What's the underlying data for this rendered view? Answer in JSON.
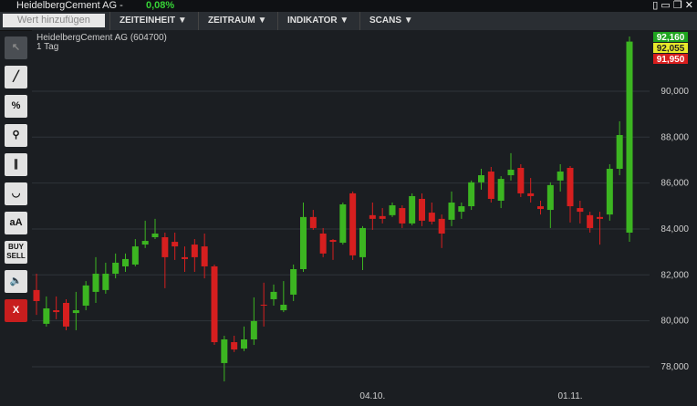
{
  "window": {
    "title": "HeidelbergCement AG -",
    "change": "0,08%"
  },
  "toolbar": {
    "search_placeholder": "Wert hinzufügen",
    "menus": [
      "ZEITEINHEIT",
      "ZEITRAUM",
      "INDIKATOR",
      "SCANS"
    ]
  },
  "tools": {
    "percent": "%",
    "text": "aA",
    "buy": "BUY",
    "sell": "SELL",
    "close": "X"
  },
  "price_tags": [
    {
      "label": "92,160",
      "color": "#1fa51f"
    },
    {
      "label": "92,055",
      "color": "#e8e82a"
    },
    {
      "label": "91,950",
      "color": "#d81e1e"
    }
  ],
  "chart_data": {
    "type": "candlestick",
    "title": "HeidelbergCement AG (604700)",
    "subtitle": "1 Tag",
    "up_color": "#3cb521",
    "down_color": "#d61f1f",
    "grid": true,
    "categories": [
      null,
      null,
      null,
      null,
      null,
      null,
      null,
      null,
      null,
      null,
      null,
      null,
      null,
      null,
      null,
      null,
      null,
      null,
      null,
      null,
      null,
      null,
      null,
      null,
      null,
      null,
      null,
      null,
      null,
      null,
      null,
      null,
      null,
      null,
      "04.10.",
      null,
      null,
      null,
      null,
      null,
      null,
      null,
      null,
      null,
      null,
      null,
      null,
      null,
      null,
      null,
      null,
      null,
      null,
      null,
      "01.11.",
      null,
      null,
      null,
      null,
      null,
      null
    ],
    "open": [
      81340,
      79870,
      80460,
      80780,
      80340,
      80660,
      81260,
      81340,
      82050,
      82370,
      82450,
      83320,
      83640,
      83640,
      83440,
      82770,
      83320,
      83240,
      82370,
      78160,
      79070,
      78790,
      79190,
      80700,
      80940,
      80460,
      81140,
      82250,
      84520,
      83800,
      83520,
      83400,
      85550,
      82770,
      84600,
      84560,
      84600,
      84910,
      84240,
      85310,
      84710,
      84440,
      84400,
      84750,
      84990,
      86030,
      86500,
      85230,
      86340,
      86660,
      85550,
      84990,
      84830,
      86110,
      86660,
      84910,
      84600,
      84520,
      84630,
      86620,
      83840
    ],
    "high": [
      82050,
      81060,
      81060,
      80940,
      81260,
      81730,
      82770,
      82530,
      82930,
      82930,
      83560,
      84360,
      84440,
      83840,
      83840,
      83240,
      83560,
      83800,
      82450,
      79350,
      79350,
      79750,
      81020,
      81660,
      81580,
      81730,
      82450,
      85150,
      84830,
      84040,
      83560,
      85150,
      85630,
      84120,
      85150,
      84910,
      85150,
      85030,
      85550,
      85550,
      85150,
      84630,
      85630,
      85150,
      86110,
      86620,
      86700,
      86300,
      87300,
      86820,
      86220,
      85230,
      86030,
      86820,
      86740,
      85230,
      84750,
      84750,
      86820,
      88690,
      92380
    ],
    "low": [
      80260,
      79750,
      80070,
      79590,
      79590,
      80460,
      80780,
      81180,
      81850,
      82130,
      82370,
      83170,
      83560,
      81420,
      82650,
      82130,
      82130,
      81850,
      78950,
      77360,
      78640,
      78680,
      78950,
      79750,
      80660,
      80380,
      80860,
      82130,
      83960,
      82770,
      82650,
      83320,
      82650,
      82210,
      83960,
      84240,
      84520,
      84040,
      84160,
      84120,
      84200,
      83170,
      84120,
      84440,
      84830,
      85710,
      85150,
      84910,
      86110,
      85390,
      85150,
      84630,
      84040,
      85630,
      84280,
      84240,
      83840,
      83320,
      84360,
      86340,
      83440
    ],
    "close": [
      80860,
      80540,
      80380,
      79750,
      80460,
      81540,
      82050,
      82050,
      82530,
      82690,
      83240,
      83480,
      83800,
      82770,
      83240,
      82690,
      82770,
      82370,
      79070,
      79190,
      78750,
      79190,
      79990,
      80660,
      81260,
      80700,
      82250,
      84520,
      84040,
      82930,
      83440,
      85070,
      82850,
      84040,
      84440,
      84440,
      85030,
      84240,
      85430,
      84360,
      84320,
      83800,
      85150,
      84990,
      86030,
      86340,
      85310,
      86180,
      86580,
      85550,
      85430,
      84870,
      85910,
      86500,
      84990,
      84750,
      84040,
      84440,
      86620,
      88090,
      92160
    ],
    "ylim": [
      76290,
      92660
    ],
    "yticks": [
      {
        "value": 78000,
        "label": "78,000"
      },
      {
        "value": 80000,
        "label": "80,000"
      },
      {
        "value": 82000,
        "label": "82,000"
      },
      {
        "value": 84000,
        "label": "84,000"
      },
      {
        "value": 86000,
        "label": "86,000"
      },
      {
        "value": 88000,
        "label": "88,000"
      },
      {
        "value": 90000,
        "label": "90,000"
      }
    ]
  }
}
